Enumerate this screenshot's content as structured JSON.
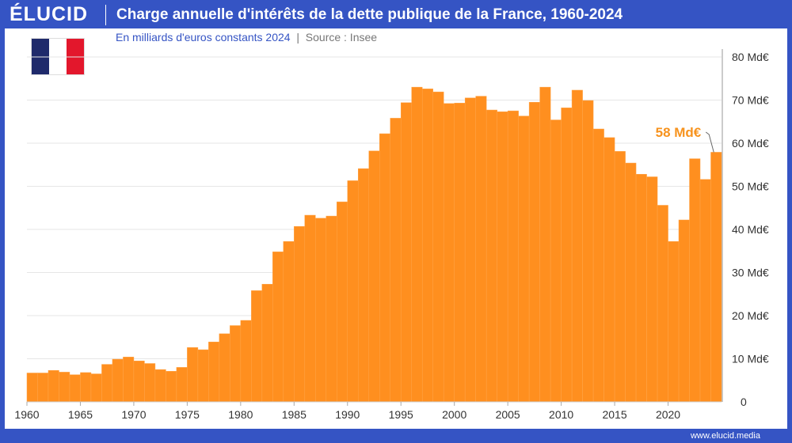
{
  "brand": "ÉLUCID",
  "footer": "www.elucid.media",
  "colors": {
    "bar": "#ff8f1f",
    "brand": "#3554c4",
    "annotation": "#f7931e"
  },
  "flag": {
    "name": "France",
    "colors": [
      "#1f2a6b",
      "#ffffff",
      "#e3172c"
    ]
  },
  "chart_data": {
    "type": "bar",
    "title": "Charge annuelle d'intérêts de la dette publique de la France, 1960-2024",
    "subtitle": "En milliards d'euros constants 2024",
    "source": "Source : Insee",
    "ylim": [
      0,
      80
    ],
    "yticks": [
      "0",
      "10 Md€",
      "20 Md€",
      "30 Md€",
      "40 Md€",
      "50 Md€",
      "60 Md€",
      "70 Md€",
      "80 Md€"
    ],
    "xticks": [
      "1960",
      "1965",
      "1970",
      "1975",
      "1980",
      "1985",
      "1990",
      "1995",
      "2000",
      "2005",
      "2010",
      "2015",
      "2020"
    ],
    "grid": true,
    "annotation": {
      "label": "58 Md€",
      "year": 2024
    },
    "categories": [
      1960,
      1961,
      1962,
      1963,
      1964,
      1965,
      1966,
      1967,
      1968,
      1969,
      1970,
      1971,
      1972,
      1973,
      1974,
      1975,
      1976,
      1977,
      1978,
      1979,
      1980,
      1981,
      1982,
      1983,
      1984,
      1985,
      1986,
      1987,
      1988,
      1989,
      1990,
      1991,
      1992,
      1993,
      1994,
      1995,
      1996,
      1997,
      1998,
      1999,
      2000,
      2001,
      2002,
      2003,
      2004,
      2005,
      2006,
      2007,
      2008,
      2009,
      2010,
      2011,
      2012,
      2013,
      2014,
      2015,
      2016,
      2017,
      2018,
      2019,
      2020,
      2021,
      2022,
      2023,
      2024
    ],
    "values": [
      6.7,
      6.7,
      7.3,
      6.9,
      6.3,
      6.8,
      6.5,
      8.7,
      9.9,
      10.4,
      9.5,
      8.9,
      7.5,
      7.1,
      8.0,
      12.6,
      12.1,
      13.9,
      15.8,
      17.7,
      18.9,
      25.8,
      27.3,
      34.8,
      37.2,
      40.7,
      43.3,
      42.6,
      43.1,
      46.4,
      51.3,
      54.1,
      58.2,
      62.2,
      65.8,
      69.4,
      73.0,
      72.6,
      71.9,
      69.2,
      69.3,
      70.5,
      70.9,
      67.7,
      67.3,
      67.5,
      66.3,
      69.5,
      73.0,
      65.4,
      68.2,
      72.3,
      69.9,
      63.3,
      61.3,
      58.1,
      55.4,
      52.8,
      52.2,
      45.6,
      37.2,
      42.2,
      56.4,
      51.6,
      57.9
    ]
  }
}
